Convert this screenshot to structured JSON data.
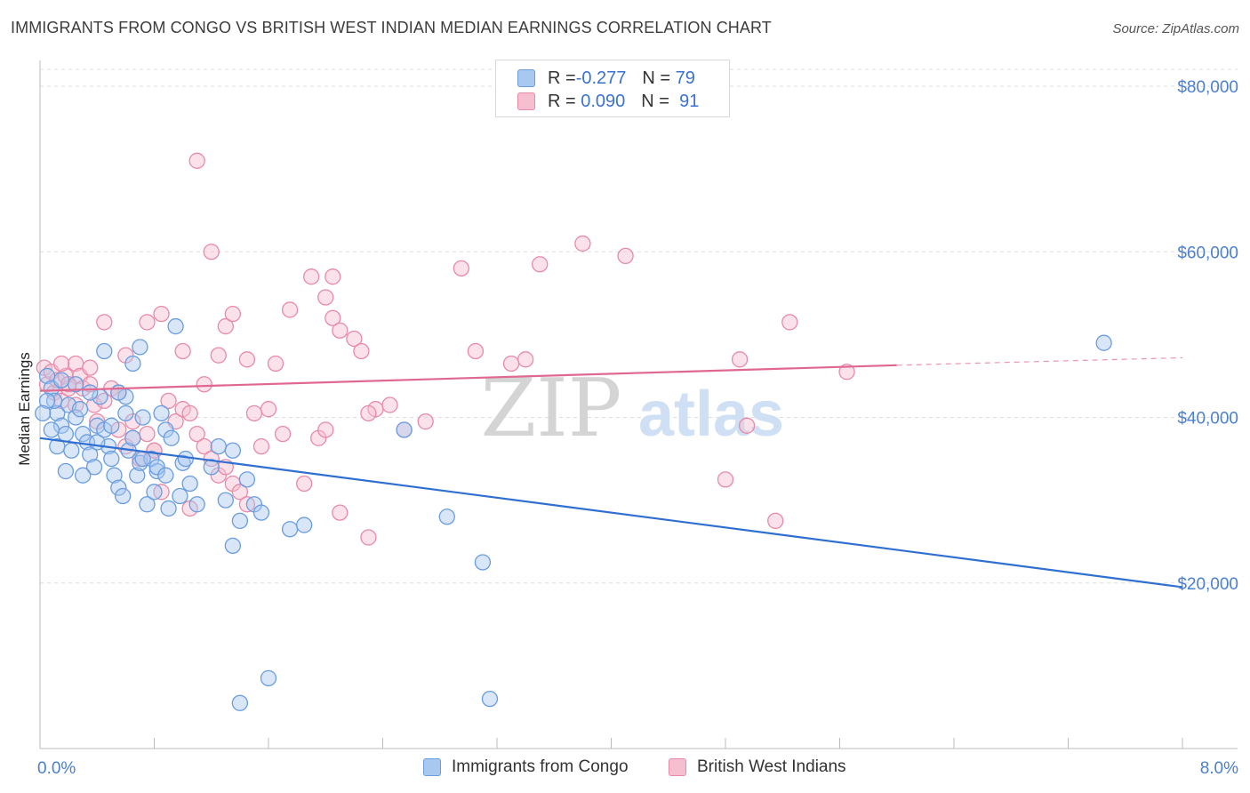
{
  "title": "IMMIGRANTS FROM CONGO VS BRITISH WEST INDIAN MEDIAN EARNINGS CORRELATION CHART",
  "source": "Source: ZipAtlas.com",
  "watermark": {
    "zip": "ZIP",
    "atlas": "atlas"
  },
  "colors": {
    "blue_fill": "#a9c8f0",
    "blue_stroke": "#6a9de0",
    "blue_line": "#2f6fd1",
    "pink_fill": "#f6bfd0",
    "pink_stroke": "#e88aa8",
    "pink_line": "#e0688f",
    "tick_text": "#4a7fd1",
    "grid": "#dedede"
  },
  "legend": {
    "rows": [
      {
        "r_label": "R = ",
        "r_value": "-0.277",
        "n_label": "N = ",
        "n_value": "79",
        "color": "blue"
      },
      {
        "r_label": "R = ",
        "r_value": " 0.090",
        "n_label": "N = ",
        "n_value": " 91",
        "color": "pink"
      }
    ]
  },
  "bottom_legend": [
    "Immigrants from Congo",
    "British West Indians"
  ],
  "chart_data": {
    "type": "scatter",
    "title": "IMMIGRANTS FROM CONGO VS BRITISH WEST INDIAN MEDIAN EARNINGS CORRELATION CHART",
    "xlabel": "",
    "ylabel": "Median Earnings",
    "xlim": [
      0.0,
      8.0
    ],
    "ylim": [
      0,
      81000
    ],
    "x_tick_labels": [
      "0.0%",
      "8.0%"
    ],
    "y_ticks": [
      20000,
      40000,
      60000,
      80000
    ],
    "y_tick_labels": [
      "$20,000",
      "$40,000",
      "$60,000",
      "$80,000"
    ],
    "grid": "horizontal dashed",
    "legend_position": "top-center",
    "series": [
      {
        "name": "Immigrants from Congo",
        "color": "blue",
        "trend": {
          "x": [
            0.0,
            8.0
          ],
          "y": [
            37500,
            19500
          ]
        },
        "points": [
          [
            0.05,
            45000
          ],
          [
            0.08,
            43500
          ],
          [
            0.12,
            40500
          ],
          [
            0.15,
            39000
          ],
          [
            0.1,
            42000
          ],
          [
            0.2,
            41500
          ],
          [
            0.18,
            38000
          ],
          [
            0.22,
            36000
          ],
          [
            0.25,
            40000
          ],
          [
            0.28,
            41000
          ],
          [
            0.3,
            38000
          ],
          [
            0.33,
            37000
          ],
          [
            0.35,
            35500
          ],
          [
            0.38,
            34000
          ],
          [
            0.4,
            39000
          ],
          [
            0.42,
            42500
          ],
          [
            0.45,
            38500
          ],
          [
            0.48,
            36500
          ],
          [
            0.5,
            35000
          ],
          [
            0.52,
            33000
          ],
          [
            0.55,
            31500
          ],
          [
            0.58,
            30500
          ],
          [
            0.6,
            42500
          ],
          [
            0.62,
            36000
          ],
          [
            0.65,
            37500
          ],
          [
            0.68,
            33000
          ],
          [
            0.7,
            34500
          ],
          [
            0.72,
            40000
          ],
          [
            0.75,
            29500
          ],
          [
            0.78,
            35000
          ],
          [
            0.8,
            31000
          ],
          [
            0.82,
            33500
          ],
          [
            0.85,
            40500
          ],
          [
            0.88,
            38500
          ],
          [
            0.9,
            29000
          ],
          [
            0.95,
            51000
          ],
          [
            0.98,
            30500
          ],
          [
            1.0,
            34500
          ],
          [
            1.05,
            32000
          ],
          [
            0.18,
            33500
          ],
          [
            0.3,
            33000
          ],
          [
            0.12,
            36500
          ],
          [
            0.08,
            38500
          ],
          [
            0.25,
            44000
          ],
          [
            0.35,
            43000
          ],
          [
            0.45,
            48000
          ],
          [
            0.65,
            46500
          ],
          [
            0.7,
            48500
          ],
          [
            0.55,
            43000
          ],
          [
            0.15,
            44500
          ],
          [
            0.05,
            42000
          ],
          [
            0.02,
            40500
          ],
          [
            0.4,
            37000
          ],
          [
            0.5,
            39000
          ],
          [
            0.6,
            40500
          ],
          [
            0.72,
            35000
          ],
          [
            0.82,
            34000
          ],
          [
            0.92,
            37500
          ],
          [
            1.02,
            35000
          ],
          [
            1.1,
            29500
          ],
          [
            1.2,
            34000
          ],
          [
            1.25,
            36500
          ],
          [
            1.3,
            30000
          ],
          [
            1.35,
            36000
          ],
          [
            1.4,
            27500
          ],
          [
            1.45,
            32500
          ],
          [
            1.5,
            29500
          ],
          [
            1.55,
            28500
          ],
          [
            1.35,
            24500
          ],
          [
            1.6,
            8500
          ],
          [
            1.75,
            26500
          ],
          [
            1.85,
            27000
          ],
          [
            2.55,
            38500
          ],
          [
            2.85,
            28000
          ],
          [
            3.1,
            22500
          ],
          [
            1.4,
            5500
          ],
          [
            3.15,
            6000
          ],
          [
            7.45,
            49000
          ],
          [
            0.88,
            33000
          ]
        ]
      },
      {
        "name": "British West Indians",
        "color": "pink",
        "trend": {
          "x": [
            0.0,
            6.0
          ],
          "y": [
            43200,
            46300
          ]
        },
        "trend_dashed": {
          "x": [
            6.0,
            8.0
          ],
          "y": [
            46300,
            47200
          ]
        },
        "points": [
          [
            0.03,
            46000
          ],
          [
            0.05,
            44000
          ],
          [
            0.08,
            45500
          ],
          [
            0.1,
            43000
          ],
          [
            0.12,
            44500
          ],
          [
            0.15,
            42000
          ],
          [
            0.18,
            45000
          ],
          [
            0.2,
            43500
          ],
          [
            0.25,
            46500
          ],
          [
            0.28,
            45000
          ],
          [
            0.3,
            43500
          ],
          [
            0.35,
            44000
          ],
          [
            0.38,
            41500
          ],
          [
            0.4,
            39500
          ],
          [
            0.45,
            42000
          ],
          [
            0.5,
            43500
          ],
          [
            0.55,
            38500
          ],
          [
            0.6,
            36500
          ],
          [
            0.65,
            37500
          ],
          [
            0.7,
            35000
          ],
          [
            0.75,
            38000
          ],
          [
            0.8,
            36000
          ],
          [
            0.85,
            31000
          ],
          [
            0.9,
            42000
          ],
          [
            0.95,
            39500
          ],
          [
            1.0,
            41000
          ],
          [
            1.05,
            40500
          ],
          [
            1.1,
            38000
          ],
          [
            1.15,
            36500
          ],
          [
            1.2,
            35000
          ],
          [
            1.25,
            33000
          ],
          [
            1.3,
            34000
          ],
          [
            1.35,
            32000
          ],
          [
            1.4,
            31000
          ],
          [
            1.45,
            29500
          ],
          [
            0.45,
            51500
          ],
          [
            0.6,
            47500
          ],
          [
            0.75,
            51500
          ],
          [
            0.85,
            52500
          ],
          [
            1.0,
            48000
          ],
          [
            1.1,
            71000
          ],
          [
            1.2,
            60000
          ],
          [
            1.3,
            51000
          ],
          [
            1.35,
            52500
          ],
          [
            1.25,
            47500
          ],
          [
            1.45,
            47000
          ],
          [
            1.6,
            41000
          ],
          [
            1.75,
            53000
          ],
          [
            1.9,
            57000
          ],
          [
            2.0,
            54500
          ],
          [
            2.05,
            52000
          ],
          [
            2.1,
            50500
          ],
          [
            2.2,
            49500
          ],
          [
            2.25,
            48000
          ],
          [
            2.05,
            57000
          ],
          [
            2.35,
            41000
          ],
          [
            2.45,
            41500
          ],
          [
            2.55,
            38500
          ],
          [
            2.7,
            39500
          ],
          [
            2.95,
            58000
          ],
          [
            3.05,
            48000
          ],
          [
            3.4,
            47000
          ],
          [
            3.5,
            58500
          ],
          [
            3.8,
            61000
          ],
          [
            4.1,
            59500
          ],
          [
            4.9,
            47000
          ],
          [
            4.95,
            39000
          ],
          [
            5.15,
            27500
          ],
          [
            5.25,
            51500
          ],
          [
            5.65,
            45500
          ],
          [
            4.8,
            32500
          ],
          [
            1.55,
            36500
          ],
          [
            1.7,
            38000
          ],
          [
            1.85,
            32000
          ],
          [
            2.1,
            28500
          ],
          [
            2.3,
            25500
          ],
          [
            1.05,
            29000
          ],
          [
            1.65,
            46500
          ],
          [
            1.5,
            40500
          ],
          [
            1.95,
            37500
          ],
          [
            2.0,
            38500
          ],
          [
            2.3,
            40500
          ],
          [
            0.65,
            39500
          ],
          [
            0.55,
            43000
          ],
          [
            0.15,
            46500
          ],
          [
            0.2,
            44000
          ],
          [
            0.35,
            46000
          ],
          [
            0.25,
            41500
          ],
          [
            0.8,
            36000
          ],
          [
            1.15,
            44000
          ],
          [
            3.3,
            46500
          ]
        ]
      }
    ]
  }
}
